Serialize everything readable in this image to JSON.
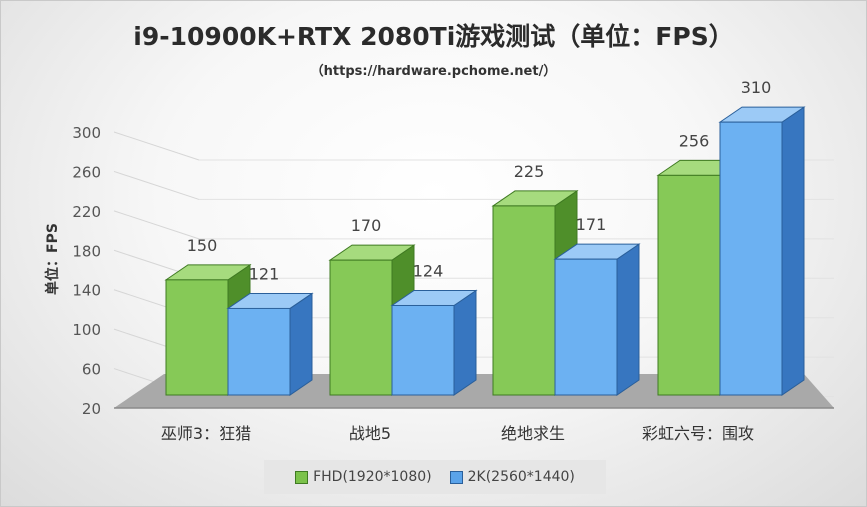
{
  "chart_data": {
    "type": "bar",
    "title": "i9-10900K+RTX 2080Ti游戏测试（单位：FPS）",
    "subtitle": "（https://hardware.pchome.net/）",
    "ylabel": "单位：FPS",
    "xlabel": "",
    "categories": [
      "巫师3：狂猎",
      "战地5",
      "绝地求生",
      "彩虹六号：围攻"
    ],
    "series": [
      {
        "name": "FHD(1920*1080)",
        "values": [
          150,
          170,
          225,
          256
        ],
        "color": "#8fcf5f"
      },
      {
        "name": "2K(2560*1440)",
        "values": [
          121,
          124,
          171,
          310
        ],
        "color": "#6aaef0"
      }
    ],
    "yticks": [
      20,
      60,
      100,
      140,
      180,
      220,
      260,
      300
    ],
    "ylim": [
      20,
      300
    ],
    "grid": true,
    "legend": "bottom"
  }
}
